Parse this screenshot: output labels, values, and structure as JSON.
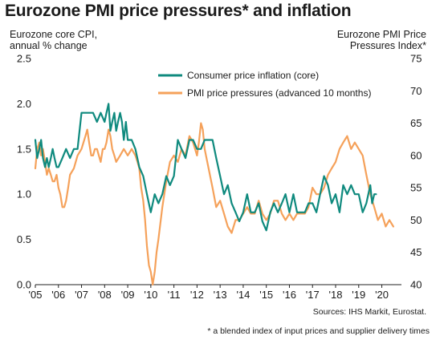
{
  "title": "Eurozone PMI price pressures* and inflation",
  "left_axis_title": [
    "Eurozone core CPI,",
    "annual % change"
  ],
  "right_axis_title": [
    "Eurozone PMI Price",
    "Pressures Index*"
  ],
  "sources": "Sources: IHS Markit, Eurostat.",
  "footnote": "* a blended index of input prices and supplier delivery times",
  "colors": {
    "cpi": "#0f8a7e",
    "pmi": "#f5a15a",
    "axis": "#222222"
  },
  "chart_data": {
    "type": "line",
    "xlabel": "",
    "xlim": [
      2005.0,
      2020.85
    ],
    "x_tick_labels": [
      "'05",
      "'06",
      "'07",
      "'08",
      "'09",
      "'10",
      "'11",
      "'12",
      "'13",
      "'14",
      "'15",
      "'16",
      "'17",
      "'18",
      "'19",
      "'20"
    ],
    "y_left": {
      "label": "Eurozone core CPI, annual % change",
      "lim": [
        0.0,
        2.5
      ],
      "ticks": [
        "0.0",
        "0.5",
        "1.0",
        "1.5",
        "2.0",
        "2.5"
      ]
    },
    "y_right": {
      "label": "Eurozone PMI Price Pressures Index*",
      "lim": [
        40,
        75
      ],
      "ticks": [
        "40",
        "45",
        "50",
        "55",
        "60",
        "65",
        "70",
        "75"
      ]
    },
    "legend_position": "top-center",
    "series": [
      {
        "name": "Consumer price inflation (core)",
        "axis": "left",
        "x": [
          2005.0,
          2005.08,
          2005.17,
          2005.25,
          2005.33,
          2005.42,
          2005.5,
          2005.58,
          2005.67,
          2005.75,
          2005.83,
          2005.92,
          2006.0,
          2006.17,
          2006.33,
          2006.5,
          2006.67,
          2006.83,
          2007.0,
          2007.17,
          2007.33,
          2007.5,
          2007.67,
          2007.83,
          2008.0,
          2008.08,
          2008.17,
          2008.25,
          2008.33,
          2008.42,
          2008.5,
          2008.58,
          2008.67,
          2008.75,
          2008.83,
          2008.92,
          2009.0,
          2009.17,
          2009.33,
          2009.5,
          2009.67,
          2009.83,
          2010.0,
          2010.17,
          2010.33,
          2010.5,
          2010.67,
          2010.83,
          2011.0,
          2011.17,
          2011.33,
          2011.5,
          2011.67,
          2011.83,
          2012.0,
          2012.17,
          2012.33,
          2012.5,
          2012.67,
          2012.83,
          2013.0,
          2013.17,
          2013.33,
          2013.5,
          2013.67,
          2013.83,
          2014.0,
          2014.17,
          2014.33,
          2014.5,
          2014.67,
          2014.83,
          2015.0,
          2015.17,
          2015.33,
          2015.5,
          2015.67,
          2015.83,
          2016.0,
          2016.17,
          2016.33,
          2016.5,
          2016.67,
          2016.83,
          2017.0,
          2017.17,
          2017.33,
          2017.5,
          2017.67,
          2017.83,
          2018.0,
          2018.17,
          2018.33,
          2018.5,
          2018.67,
          2018.83,
          2019.0,
          2019.17,
          2019.33,
          2019.5,
          2019.58,
          2019.67,
          2019.75
        ],
        "values": [
          1.6,
          1.4,
          1.5,
          1.6,
          1.4,
          1.3,
          1.4,
          1.3,
          1.4,
          1.5,
          1.4,
          1.3,
          1.3,
          1.4,
          1.5,
          1.4,
          1.5,
          1.5,
          1.9,
          1.9,
          1.9,
          1.9,
          1.8,
          1.9,
          1.8,
          1.9,
          2.0,
          1.7,
          1.8,
          1.9,
          1.7,
          1.8,
          1.9,
          1.8,
          1.6,
          1.8,
          1.6,
          1.6,
          1.5,
          1.3,
          1.2,
          1.0,
          0.8,
          1.0,
          0.9,
          1.0,
          1.2,
          1.1,
          1.2,
          1.6,
          1.5,
          1.4,
          1.6,
          1.6,
          1.5,
          1.5,
          1.6,
          1.6,
          1.6,
          1.4,
          1.2,
          1.0,
          1.1,
          0.9,
          0.8,
          0.7,
          0.8,
          1.0,
          0.8,
          0.8,
          0.9,
          0.7,
          0.6,
          0.8,
          0.9,
          0.8,
          0.9,
          1.0,
          0.8,
          1.0,
          0.8,
          0.8,
          0.8,
          0.9,
          0.9,
          0.8,
          1.0,
          1.2,
          1.1,
          0.9,
          1.0,
          0.8,
          1.1,
          1.0,
          1.1,
          1.0,
          1.0,
          0.8,
          0.9,
          1.1,
          0.9,
          1.0,
          1.0
        ]
      },
      {
        "name": "PMI price pressures (advanced 10 months)",
        "axis": "right",
        "x": [
          2005.0,
          2005.08,
          2005.17,
          2005.25,
          2005.33,
          2005.42,
          2005.5,
          2005.58,
          2005.67,
          2005.75,
          2005.83,
          2005.92,
          2006.0,
          2006.08,
          2006.17,
          2006.25,
          2006.33,
          2006.42,
          2006.5,
          2006.67,
          2006.83,
          2007.0,
          2007.17,
          2007.25,
          2007.33,
          2007.42,
          2007.5,
          2007.58,
          2007.67,
          2007.75,
          2007.83,
          2007.92,
          2008.0,
          2008.08,
          2008.17,
          2008.25,
          2008.33,
          2008.42,
          2008.5,
          2008.67,
          2008.83,
          2009.0,
          2009.17,
          2009.33,
          2009.42,
          2009.5,
          2009.58,
          2009.67,
          2009.75,
          2009.83,
          2009.92,
          2010.0,
          2010.08,
          2010.17,
          2010.25,
          2010.33,
          2010.5,
          2010.67,
          2010.83,
          2011.0,
          2011.17,
          2011.33,
          2011.5,
          2011.67,
          2011.83,
          2012.0,
          2012.08,
          2012.17,
          2012.25,
          2012.33,
          2012.5,
          2012.67,
          2012.83,
          2013.0,
          2013.17,
          2013.33,
          2013.5,
          2013.67,
          2013.83,
          2014.0,
          2014.17,
          2014.33,
          2014.5,
          2014.67,
          2014.83,
          2015.0,
          2015.17,
          2015.33,
          2015.5,
          2015.67,
          2015.83,
          2016.0,
          2016.17,
          2016.33,
          2016.5,
          2016.67,
          2016.83,
          2017.0,
          2017.17,
          2017.33,
          2017.5,
          2017.67,
          2017.83,
          2018.0,
          2018.17,
          2018.33,
          2018.5,
          2018.67,
          2018.83,
          2019.0,
          2019.17,
          2019.33,
          2019.5,
          2019.67,
          2019.83,
          2020.0,
          2020.17,
          2020.33,
          2020.5
        ],
        "values": [
          58,
          61,
          62,
          60,
          61,
          59,
          57,
          58,
          57,
          56,
          56,
          57,
          55,
          54,
          52,
          52,
          53,
          55,
          57,
          58,
          60,
          61,
          63,
          64,
          62,
          60,
          60,
          61,
          61,
          60,
          59,
          61,
          61,
          62,
          64,
          63,
          61,
          60,
          59,
          60,
          61,
          60,
          61,
          60,
          59,
          58,
          55,
          53,
          50,
          46,
          43,
          42,
          40,
          42,
          45,
          47,
          52,
          56,
          59,
          60,
          59,
          61,
          60,
          63,
          62,
          60,
          62,
          65,
          64,
          61,
          58,
          55,
          52,
          53,
          51,
          49,
          48,
          50,
          50,
          51,
          52,
          51,
          51,
          53,
          51,
          50,
          51,
          53,
          53,
          51,
          50,
          51,
          50,
          51,
          51,
          51,
          52,
          55,
          54,
          54,
          55,
          57,
          58,
          59,
          61,
          62,
          63,
          61,
          62,
          61,
          60,
          57,
          54,
          52,
          50,
          51,
          49,
          50,
          49
        ]
      }
    ]
  }
}
